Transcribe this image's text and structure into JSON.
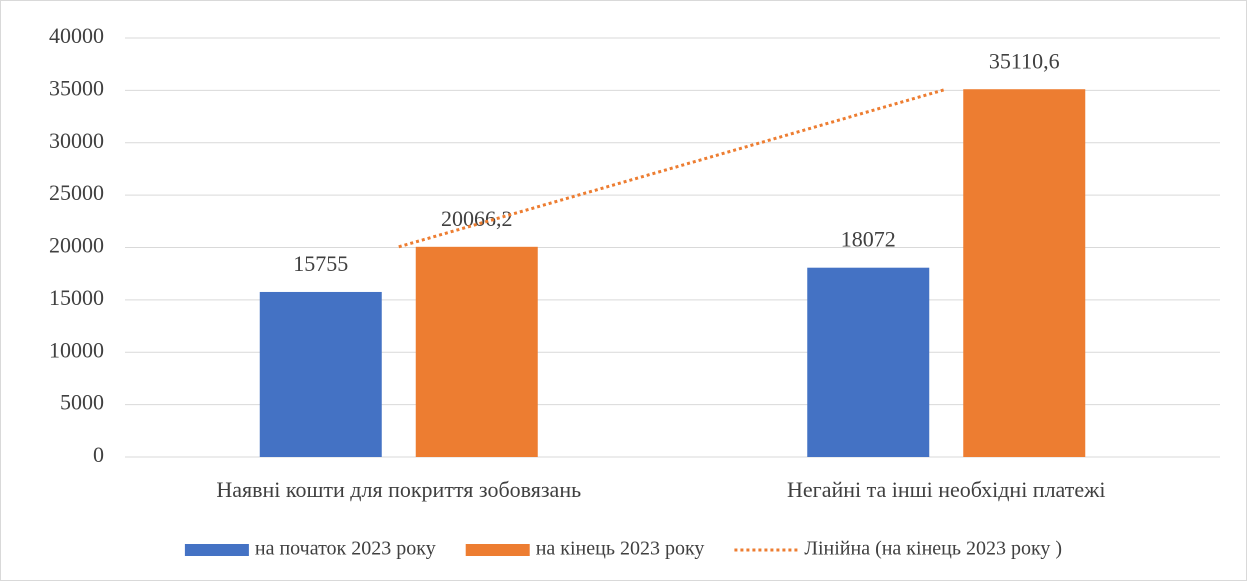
{
  "chart_data": {
    "type": "bar",
    "categories": [
      "Наявні кошти  для покриття зобовязань",
      "Негайні та інші необхідні платежі"
    ],
    "series": [
      {
        "name": "на початок 2023 року",
        "color": "#4472c4",
        "values": [
          15755,
          18072
        ]
      },
      {
        "name": "на кінець 2023 року",
        "color": "#ed7d31",
        "values": [
          20066.2,
          35110.6
        ],
        "value_labels": [
          "20066,2",
          "35110,6"
        ]
      }
    ],
    "trendline": {
      "name": "Лінійна (на кінець 2023 року )",
      "type": "linear",
      "series": 1,
      "color": "#ed7d31"
    },
    "ylim": [
      0,
      40000
    ],
    "yticks": [
      0,
      5000,
      10000,
      15000,
      20000,
      25000,
      30000,
      35000,
      40000
    ],
    "grid": true,
    "legend": "bottom"
  }
}
